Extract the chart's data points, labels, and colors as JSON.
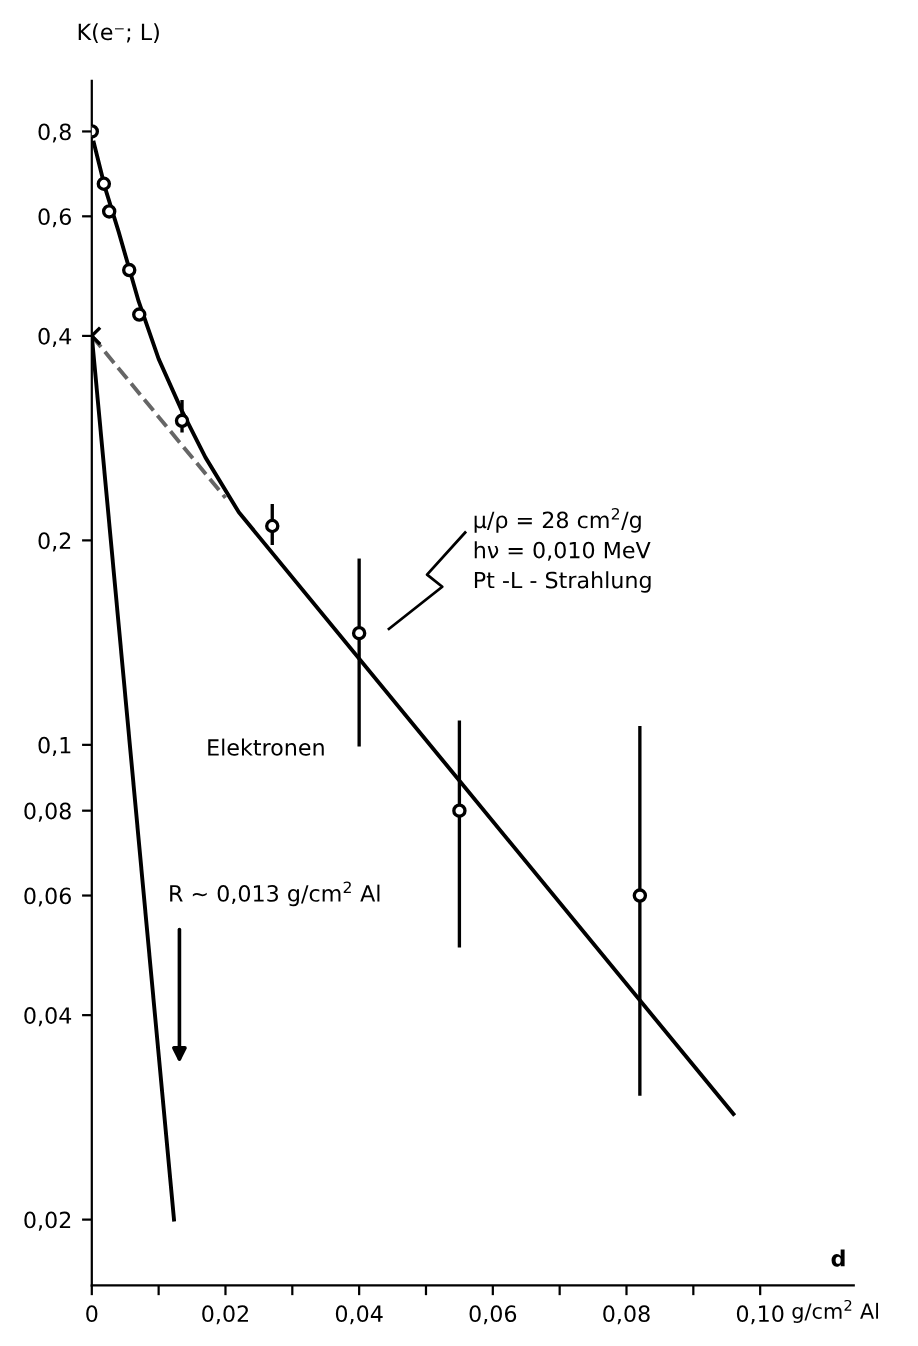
{
  "chart_data": {
    "type": "scatter",
    "ylabel": "K(e⁻; L)",
    "xlabel": "d",
    "log": "y",
    "grid": false,
    "xlim": [
      0,
      0.114
    ],
    "ylim": [
      0.016,
      0.95
    ],
    "xticks": [
      {
        "value": 0,
        "label": "0"
      },
      {
        "value": 0.01,
        "label": null
      },
      {
        "value": 0.02,
        "label": "0,02"
      },
      {
        "value": 0.03,
        "label": null
      },
      {
        "value": 0.04,
        "label": "0,04"
      },
      {
        "value": 0.05,
        "label": null
      },
      {
        "value": 0.06,
        "label": "0,06"
      },
      {
        "value": 0.07,
        "label": null
      },
      {
        "value": 0.08,
        "label": "0,08"
      },
      {
        "value": 0.09,
        "label": null
      },
      {
        "value": 0.1,
        "label": "0,10"
      }
    ],
    "yticks": [
      {
        "value": 0.02,
        "label": "0,02"
      },
      {
        "value": 0.04,
        "label": "0,04"
      },
      {
        "value": 0.06,
        "label": "0,06"
      },
      {
        "value": 0.08,
        "label": "0,08"
      },
      {
        "value": 0.1,
        "label": "0,1"
      },
      {
        "value": 0.2,
        "label": "0,2"
      },
      {
        "value": 0.4,
        "label": "0,4"
      },
      {
        "value": 0.6,
        "label": "0,6"
      },
      {
        "value": 0.8,
        "label": "0,8"
      }
    ],
    "series": [
      {
        "type": "scatter",
        "marker": "circle",
        "color": "#000000",
        "x": [
          0,
          0.0018,
          0.0026,
          0.0056,
          0.0071,
          0.0135,
          0.027,
          0.04,
          0.055,
          0.082
        ],
        "values": [
          0.8,
          0.67,
          0.61,
          0.5,
          0.43,
          0.3,
          0.21,
          0.146,
          0.08,
          0.06
        ],
        "errors": [
          null,
          null,
          null,
          null,
          null,
          [
            0.29,
            0.32
          ],
          [
            0.198,
            0.225
          ],
          [
            0.1,
            0.187
          ],
          [
            0.0506,
            0.108
          ],
          [
            0.0306,
            0.106
          ]
        ]
      },
      {
        "type": "line",
        "marker": "none",
        "line_style": "solid",
        "color": "#000000",
        "x": [
          0.0003,
          0.002,
          0.004,
          0.007,
          0.01,
          0.0135,
          0.017,
          0.022,
          0.096
        ],
        "values": [
          0.77,
          0.66,
          0.57,
          0.45,
          0.37,
          0.31,
          0.265,
          0.22,
          0.0286
        ]
      },
      {
        "type": "line",
        "marker": "none",
        "line_style": "dashed",
        "color": "#666666",
        "x": [
          0,
          0.02
        ],
        "values": [
          0.4,
          0.231
        ]
      },
      {
        "type": "line",
        "marker": "none",
        "line_style": "solid",
        "color": "#000000",
        "x": [
          0,
          0.0123
        ],
        "values": [
          0.4,
          0.02
        ]
      },
      {
        "type": "scatter",
        "marker": "cross",
        "color": "#000000",
        "x": [
          0
        ],
        "values": [
          0.4
        ]
      }
    ],
    "annotations": [
      "Elektronen",
      "R ~ 0,013 g/cm$^{2}$ Al",
      "μ/ρ = 28 cm$^{2}$/g\nhν = 0,010 MeV\nPt -L - Strahlung",
      "g/cm$^{2}$ Al"
    ]
  }
}
